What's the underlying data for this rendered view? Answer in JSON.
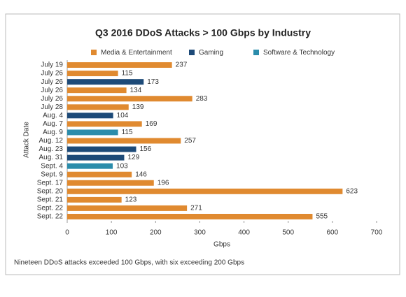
{
  "chart_data": {
    "type": "barh",
    "title": "Q3 2016 DDoS Attacks > 100 Gbps by Industry",
    "xlabel": "Gbps",
    "ylabel": "Attack Date",
    "note": "Nineteen DDoS attacks exceeded 100 Gbps, with six exceeding 200 Gbps",
    "categories": [
      "July 19",
      "July 26",
      "July 26",
      "July 26",
      "July 26",
      "July 28",
      "Aug. 4",
      "Aug. 7",
      "Aug. 9",
      "Aug. 12",
      "Aug. 23",
      "Aug. 31",
      "Sept. 4",
      "Sept. 9",
      "Sept. 17",
      "Sept. 20",
      "Sept. 21",
      "Sept. 22",
      "Sept. 22"
    ],
    "series": [
      {
        "name": "Media & Entertainment",
        "color": "#e08a30",
        "values": [
          237,
          115,
          null,
          134,
          283,
          139,
          null,
          169,
          null,
          257,
          null,
          null,
          null,
          146,
          196,
          623,
          123,
          271,
          555
        ]
      },
      {
        "name": "Gaming",
        "color": "#1d4a78",
        "values": [
          null,
          null,
          173,
          null,
          null,
          null,
          104,
          null,
          null,
          null,
          156,
          129,
          null,
          null,
          null,
          null,
          null,
          null,
          null
        ]
      },
      {
        "name": "Software & Technology",
        "color": "#2b8cab",
        "values": [
          null,
          null,
          null,
          null,
          null,
          null,
          null,
          null,
          115,
          null,
          null,
          null,
          103,
          null,
          null,
          null,
          null,
          null,
          null
        ]
      }
    ],
    "xlim": [
      0,
      700
    ],
    "xticks": [
      0,
      100,
      200,
      300,
      400,
      500,
      600,
      700
    ],
    "grid": false
  }
}
